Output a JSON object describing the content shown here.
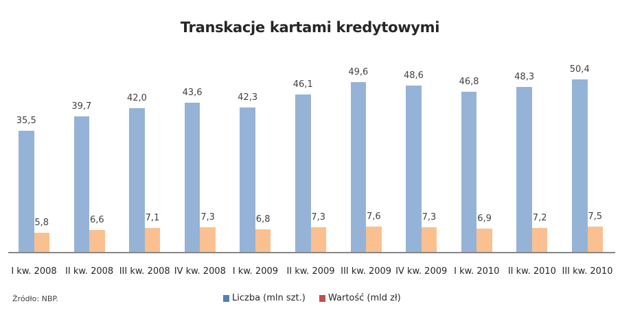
{
  "chart_data": {
    "type": "bar",
    "title": "Transkacje kartami kredytowymi",
    "xlabel": "",
    "ylabel": "",
    "categories": [
      "I kw. 2008",
      "II kw. 2008",
      "III kw. 2008",
      "IV kw. 2008",
      "I kw. 2009",
      "II kw. 2009",
      "III kw. 2009",
      "IV kw. 2009",
      "I kw. 2010",
      "II kw. 2010",
      "III kw. 2010"
    ],
    "series": [
      {
        "name": "Liczba (mln szt.)",
        "color": "#95b3d7",
        "legend_color": "#4f81bd",
        "values": [
          35.5,
          39.7,
          42.0,
          43.6,
          42.3,
          46.1,
          49.6,
          48.6,
          46.8,
          48.3,
          50.4
        ],
        "labels": [
          "35,5",
          "39,7",
          "42,0",
          "43,6",
          "42,3",
          "46,1",
          "49,6",
          "48,6",
          "46,8",
          "48,3",
          "50,4"
        ]
      },
      {
        "name": "Wartość (mld zł)",
        "color": "#fac090",
        "legend_color": "#c0504d",
        "values": [
          5.8,
          6.6,
          7.1,
          7.3,
          6.8,
          7.3,
          7.6,
          7.3,
          6.9,
          7.2,
          7.5
        ],
        "labels": [
          "5,8",
          "6,6",
          "7,1",
          "7,3",
          "6,8",
          "7,3",
          "7,6",
          "7,3",
          "6,9",
          "7,2",
          "7,5"
        ]
      }
    ],
    "grid": false,
    "legend_position": "bottom",
    "data_labels": true
  },
  "source": "Źródło: NBP."
}
